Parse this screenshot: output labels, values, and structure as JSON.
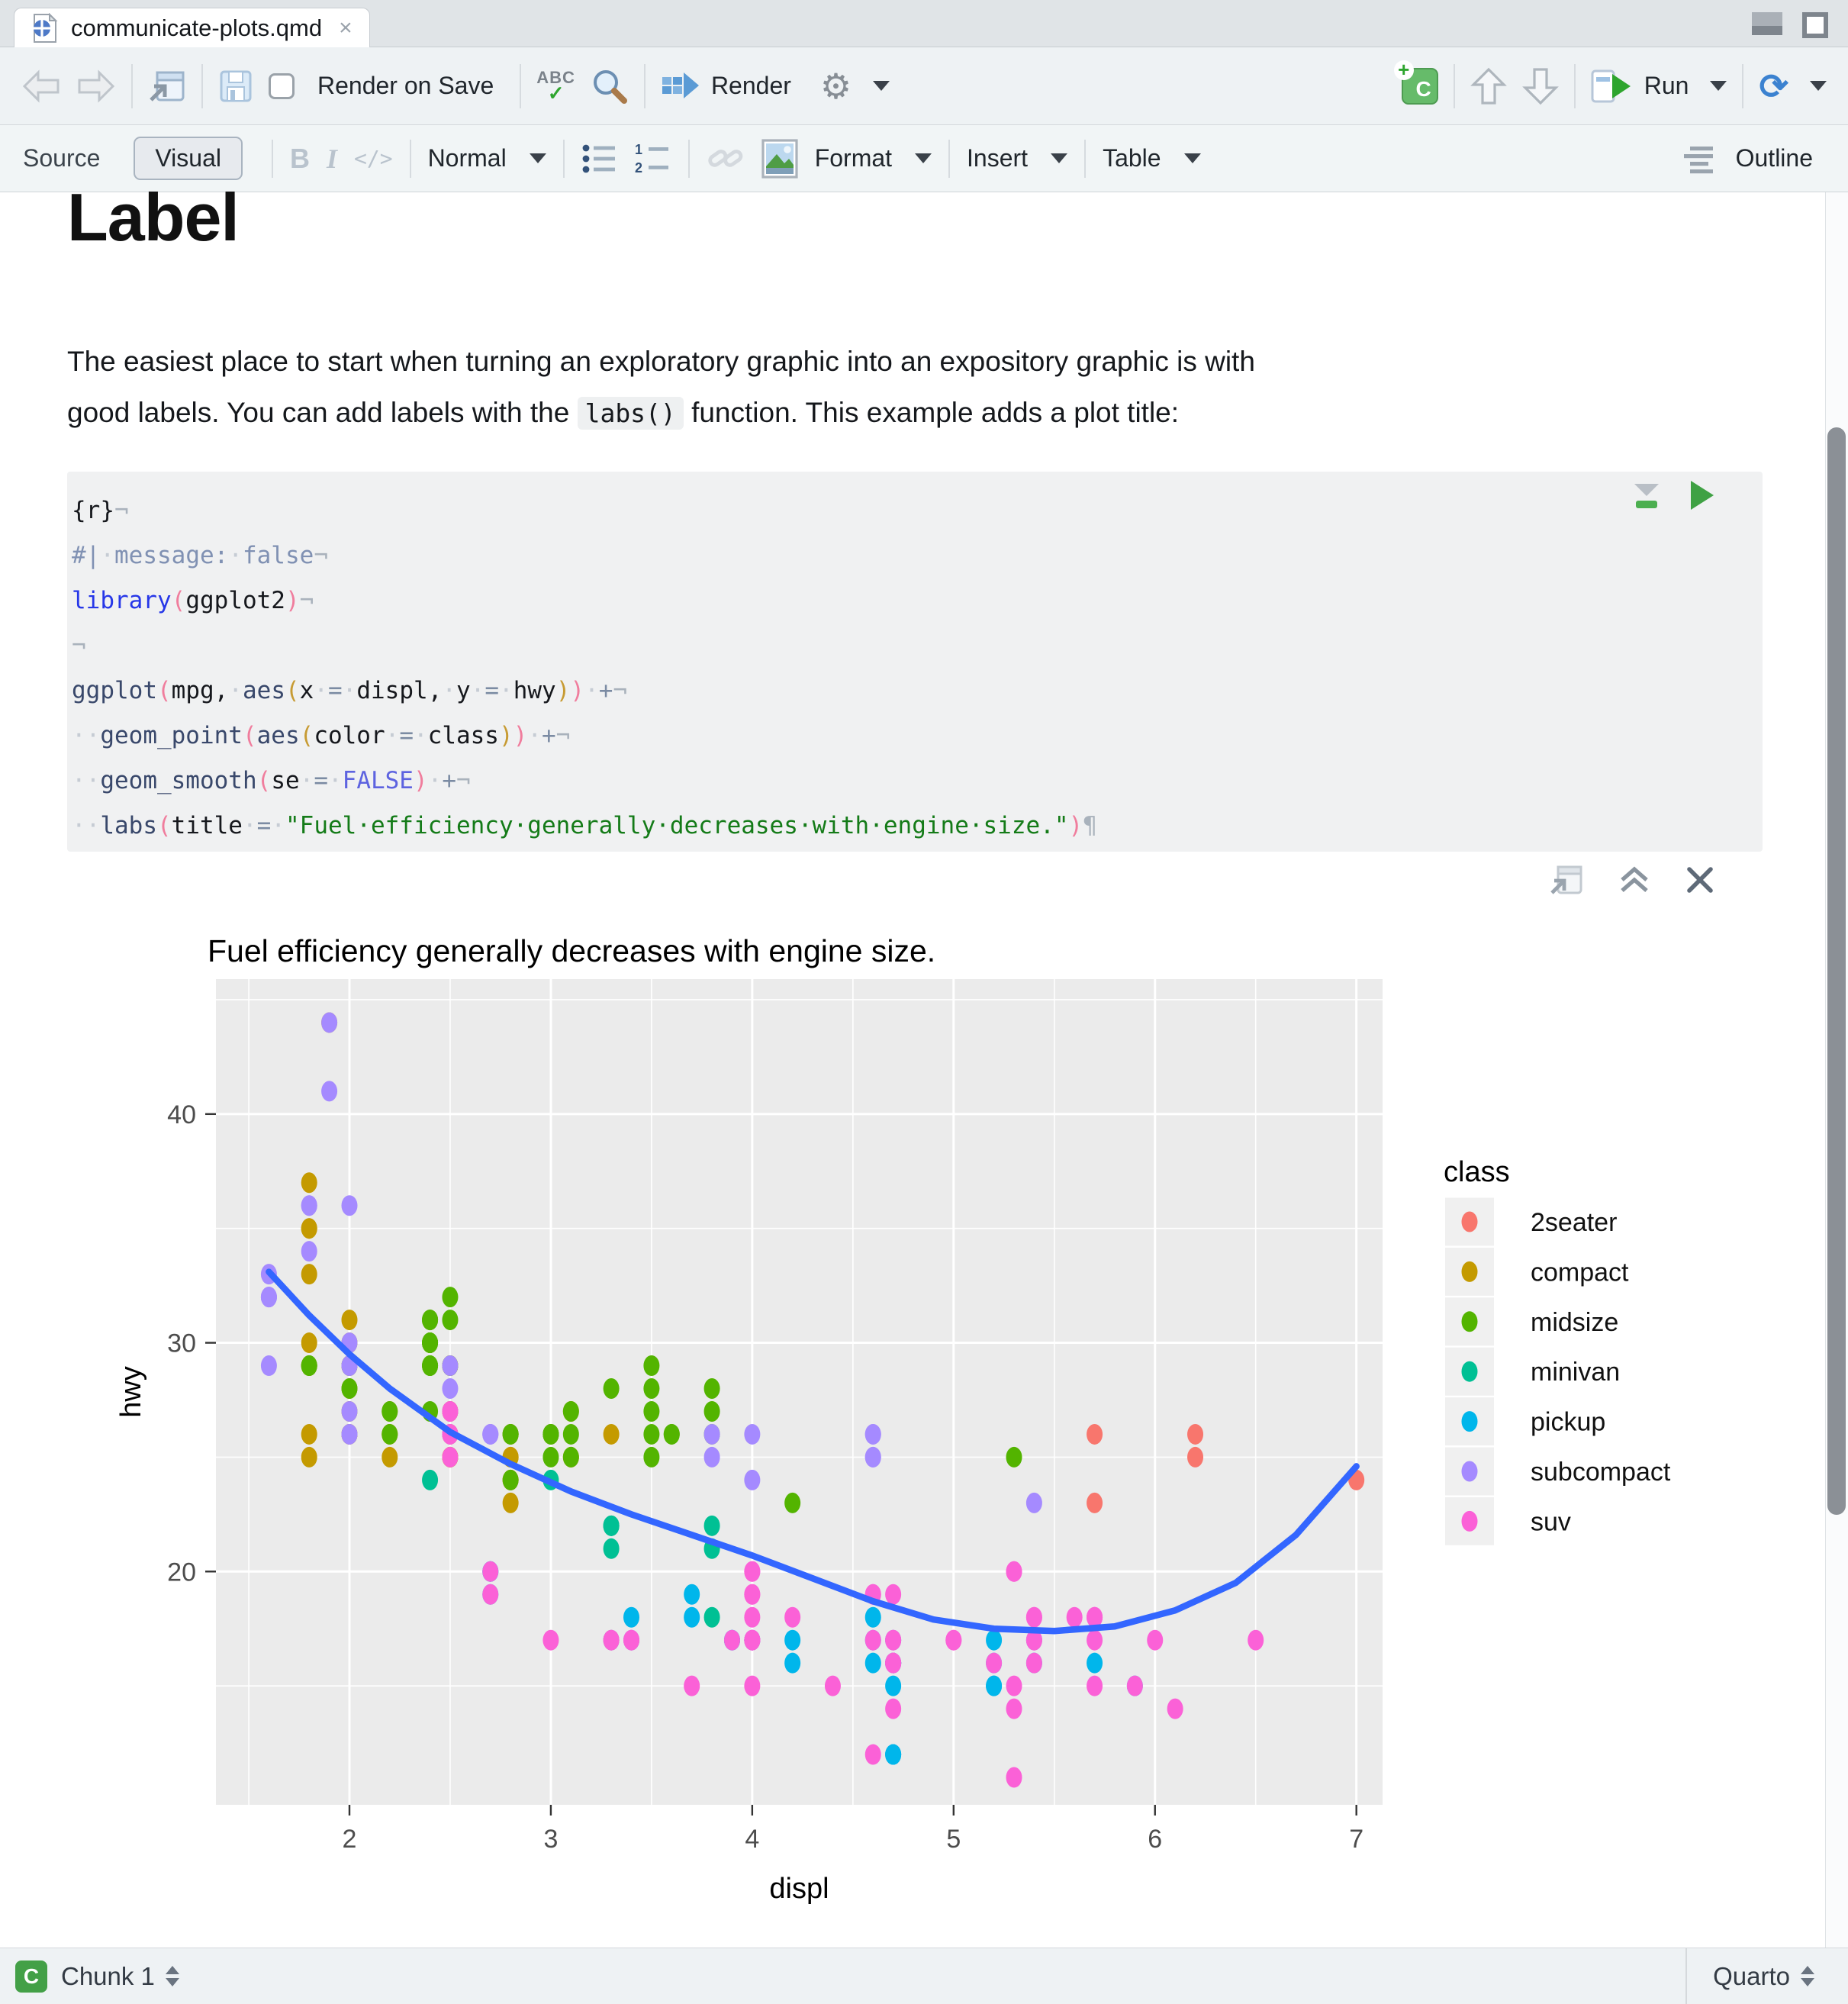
{
  "window": {
    "tab_title": "communicate-plots.qmd",
    "tab_close": "×"
  },
  "toolbar": {
    "render_on_save": "Render on Save",
    "render": "Render",
    "run": "Run"
  },
  "format_toolbar": {
    "source": "Source",
    "visual": "Visual",
    "bold": "B",
    "italic": "I",
    "code": "</>",
    "normal": "Normal",
    "format": "Format",
    "insert": "Insert",
    "table": "Table",
    "outline": "Outline"
  },
  "document": {
    "heading": "Label",
    "para_line1": "The easiest place to start when turning an exploratory graphic into an expository graphic is with",
    "para_line2a": "good labels. You can add labels with the ",
    "para_chip": "labs()",
    "para_line2b": " function. This example adds a plot title:"
  },
  "code_chunk": {
    "lines": [
      [
        [
          "{r}",
          "plain"
        ],
        [
          "¬",
          "eol"
        ]
      ],
      [
        [
          "#|",
          "comment"
        ],
        [
          "·",
          "dot"
        ],
        [
          "message:",
          "comment"
        ],
        [
          "·",
          "dot"
        ],
        [
          "false",
          "comment"
        ],
        [
          "¬",
          "eol"
        ]
      ],
      [
        [
          "library",
          "kw"
        ],
        [
          "(",
          "p1"
        ],
        [
          "ggplot2",
          "plain"
        ],
        [
          ")",
          "p1"
        ],
        [
          "¬",
          "eol"
        ]
      ],
      [
        [
          "¬",
          "eol"
        ]
      ],
      [
        [
          "ggplot",
          "fn"
        ],
        [
          "(",
          "p1"
        ],
        [
          "mpg",
          "plain"
        ],
        [
          ",",
          "plain"
        ],
        [
          "·",
          "dot"
        ],
        [
          "aes",
          "fn"
        ],
        [
          "(",
          "p2"
        ],
        [
          "x",
          "plain"
        ],
        [
          "·",
          "dot"
        ],
        [
          "=",
          "op"
        ],
        [
          "·",
          "dot"
        ],
        [
          "displ",
          "plain"
        ],
        [
          ",",
          "plain"
        ],
        [
          "·",
          "dot"
        ],
        [
          "y",
          "plain"
        ],
        [
          "·",
          "dot"
        ],
        [
          "=",
          "op"
        ],
        [
          "·",
          "dot"
        ],
        [
          "hwy",
          "plain"
        ],
        [
          ")",
          "p2"
        ],
        [
          ")",
          "p1"
        ],
        [
          "·",
          "dot"
        ],
        [
          "+",
          "op"
        ],
        [
          "¬",
          "eol"
        ]
      ],
      [
        [
          "··",
          "dot"
        ],
        [
          "geom_point",
          "fn"
        ],
        [
          "(",
          "p1"
        ],
        [
          "aes",
          "fn"
        ],
        [
          "(",
          "p2"
        ],
        [
          "color",
          "plain"
        ],
        [
          "·",
          "dot"
        ],
        [
          "=",
          "op"
        ],
        [
          "·",
          "dot"
        ],
        [
          "class",
          "plain"
        ],
        [
          ")",
          "p2"
        ],
        [
          ")",
          "p1"
        ],
        [
          "·",
          "dot"
        ],
        [
          "+",
          "op"
        ],
        [
          "¬",
          "eol"
        ]
      ],
      [
        [
          "··",
          "dot"
        ],
        [
          "geom_smooth",
          "fn"
        ],
        [
          "(",
          "p1"
        ],
        [
          "se",
          "plain"
        ],
        [
          "·",
          "dot"
        ],
        [
          "=",
          "op"
        ],
        [
          "·",
          "dot"
        ],
        [
          "FALSE",
          "false"
        ],
        [
          ")",
          "p1"
        ],
        [
          "·",
          "dot"
        ],
        [
          "+",
          "op"
        ],
        [
          "¬",
          "eol"
        ]
      ],
      [
        [
          "··",
          "dot"
        ],
        [
          "labs",
          "fn"
        ],
        [
          "(",
          "p1"
        ],
        [
          "title",
          "plain"
        ],
        [
          "·",
          "dot"
        ],
        [
          "=",
          "op"
        ],
        [
          "·",
          "dot"
        ],
        [
          "\"Fuel·efficiency·generally·decreases·with·engine·size.\"",
          "str"
        ],
        [
          ")",
          "p1"
        ],
        [
          "¶",
          "eol"
        ]
      ]
    ]
  },
  "chart_data": {
    "type": "scatter",
    "title": "Fuel efficiency generally decreases with engine size.",
    "xlabel": "displ",
    "ylabel": "hwy",
    "x_domain": [
      1.337,
      7.13
    ],
    "y_domain": [
      9.8,
      45.9
    ],
    "x_ticks": [
      2,
      3,
      4,
      5,
      6,
      7
    ],
    "y_ticks": [
      20,
      30,
      40
    ],
    "x_minor": [
      1.5,
      2.5,
      3.5,
      4.5,
      5.5,
      6.5
    ],
    "y_minor": [
      15,
      25,
      35,
      45
    ],
    "panel_bg": "#EBEBEB",
    "grid_color": "#FFFFFF",
    "tick_label_color": "#4d4d4d",
    "smooth_color": "#3366FF",
    "legend_title": "class",
    "classes": [
      {
        "label": "2seater",
        "color": "#F8766D"
      },
      {
        "label": "compact",
        "color": "#C49A00"
      },
      {
        "label": "midsize",
        "color": "#53B400"
      },
      {
        "label": "minivan",
        "color": "#00C094"
      },
      {
        "label": "pickup",
        "color": "#00B6EB"
      },
      {
        "label": "subcompact",
        "color": "#A58AFF"
      },
      {
        "label": "suv",
        "color": "#FB61D7"
      }
    ],
    "points": [
      [
        1.8,
        29,
        1
      ],
      [
        1.8,
        29,
        1
      ],
      [
        2.0,
        31,
        1
      ],
      [
        2.0,
        30,
        1
      ],
      [
        2.8,
        26,
        1
      ],
      [
        2.8,
        26,
        1
      ],
      [
        3.1,
        27,
        1
      ],
      [
        1.8,
        26,
        1
      ],
      [
        1.8,
        25,
        1
      ],
      [
        2.0,
        28,
        1
      ],
      [
        2.0,
        27,
        1
      ],
      [
        2.8,
        25,
        1
      ],
      [
        2.8,
        25,
        1
      ],
      [
        3.1,
        25,
        1
      ],
      [
        3.1,
        25,
        1
      ],
      [
        2.2,
        26,
        1
      ],
      [
        2.2,
        27,
        1
      ],
      [
        2.4,
        30,
        1
      ],
      [
        2.4,
        31,
        1
      ],
      [
        3.0,
        26,
        1
      ],
      [
        3.3,
        26,
        1
      ],
      [
        1.8,
        30,
        1
      ],
      [
        1.8,
        33,
        1
      ],
      [
        1.8,
        35,
        1
      ],
      [
        1.8,
        37,
        1
      ],
      [
        1.8,
        35,
        1
      ],
      [
        2.0,
        29,
        1
      ],
      [
        2.0,
        26,
        1
      ],
      [
        2.0,
        29,
        1
      ],
      [
        2.0,
        26,
        1
      ],
      [
        2.8,
        24,
        1
      ],
      [
        1.9,
        44,
        1
      ],
      [
        2.0,
        29,
        1
      ],
      [
        2.0,
        26,
        1
      ],
      [
        2.0,
        29,
        1
      ],
      [
        2.0,
        26,
        1
      ],
      [
        2.5,
        29,
        1
      ],
      [
        2.5,
        29,
        1
      ],
      [
        2.8,
        24,
        1
      ],
      [
        2.8,
        23,
        1
      ],
      [
        2.2,
        26,
        1
      ],
      [
        2.2,
        25,
        1
      ],
      [
        2.5,
        25,
        1
      ],
      [
        2.5,
        27,
        1
      ],
      [
        2.5,
        25,
        1
      ],
      [
        2.5,
        27,
        1
      ],
      [
        2.5,
        25,
        1
      ],
      [
        2.5,
        26,
        1
      ],
      [
        2.8,
        24,
        2
      ],
      [
        3.1,
        25,
        2
      ],
      [
        4.2,
        23,
        2
      ],
      [
        2.4,
        30,
        2
      ],
      [
        2.4,
        29,
        2
      ],
      [
        3.1,
        27,
        2
      ],
      [
        3.5,
        29,
        2
      ],
      [
        3.6,
        26,
        2
      ],
      [
        2.4,
        29,
        2
      ],
      [
        2.4,
        27,
        2
      ],
      [
        2.4,
        30,
        2
      ],
      [
        2.4,
        31,
        2
      ],
      [
        2.5,
        26,
        2
      ],
      [
        2.5,
        29,
        2
      ],
      [
        3.3,
        28,
        2
      ],
      [
        2.4,
        29,
        2
      ],
      [
        2.4,
        30,
        2
      ],
      [
        2.5,
        31,
        2
      ],
      [
        2.5,
        32,
        2
      ],
      [
        3.5,
        26,
        2
      ],
      [
        3.5,
        27,
        2
      ],
      [
        3.0,
        26,
        2
      ],
      [
        3.0,
        25,
        2
      ],
      [
        3.5,
        25,
        2
      ],
      [
        3.1,
        26,
        2
      ],
      [
        3.8,
        26,
        2
      ],
      [
        3.8,
        27,
        2
      ],
      [
        3.8,
        28,
        2
      ],
      [
        5.3,
        25,
        2
      ],
      [
        2.2,
        26,
        2
      ],
      [
        2.2,
        27,
        2
      ],
      [
        2.4,
        30,
        2
      ],
      [
        2.4,
        31,
        2
      ],
      [
        3.0,
        26,
        2
      ],
      [
        3.0,
        26,
        2
      ],
      [
        3.5,
        28,
        2
      ],
      [
        1.8,
        29,
        2
      ],
      [
        1.8,
        29,
        2
      ],
      [
        2.0,
        28,
        2
      ],
      [
        2.0,
        29,
        2
      ],
      [
        2.8,
        26,
        2
      ],
      [
        2.8,
        26,
        2
      ],
      [
        3.6,
        26,
        2
      ],
      [
        2.4,
        24,
        3
      ],
      [
        3.0,
        24,
        3
      ],
      [
        3.3,
        22,
        3
      ],
      [
        3.3,
        22,
        3
      ],
      [
        3.3,
        22,
        3
      ],
      [
        3.3,
        17,
        3
      ],
      [
        3.3,
        21,
        3
      ],
      [
        3.8,
        22,
        3
      ],
      [
        3.8,
        21,
        3
      ],
      [
        3.8,
        18,
        3
      ],
      [
        4.0,
        17,
        3
      ],
      [
        3.7,
        19,
        4
      ],
      [
        3.7,
        18,
        4
      ],
      [
        3.9,
        17,
        4
      ],
      [
        3.9,
        17,
        4
      ],
      [
        4.7,
        16,
        4
      ],
      [
        4.7,
        16,
        4
      ],
      [
        4.7,
        12,
        4
      ],
      [
        5.2,
        17,
        4
      ],
      [
        5.2,
        15,
        4
      ],
      [
        4.7,
        16,
        4
      ],
      [
        4.7,
        12,
        4
      ],
      [
        4.7,
        16,
        4
      ],
      [
        4.7,
        15,
        4
      ],
      [
        4.7,
        17,
        4
      ],
      [
        4.7,
        12,
        4
      ],
      [
        5.2,
        15,
        4
      ],
      [
        5.2,
        16,
        4
      ],
      [
        5.7,
        16,
        4
      ],
      [
        5.9,
        15,
        4
      ],
      [
        4.2,
        17,
        4
      ],
      [
        4.2,
        16,
        4
      ],
      [
        4.6,
        18,
        4
      ],
      [
        4.6,
        16,
        4
      ],
      [
        4.6,
        17,
        4
      ],
      [
        5.4,
        16,
        4
      ],
      [
        5.4,
        17,
        4
      ],
      [
        2.7,
        20,
        4
      ],
      [
        2.7,
        19,
        4
      ],
      [
        2.7,
        20,
        4
      ],
      [
        3.4,
        17,
        4
      ],
      [
        3.4,
        18,
        4
      ],
      [
        4.0,
        17,
        4
      ],
      [
        4.0,
        17,
        4
      ],
      [
        1.6,
        33,
        5
      ],
      [
        1.6,
        32,
        5
      ],
      [
        1.6,
        32,
        5
      ],
      [
        1.6,
        29,
        5
      ],
      [
        1.6,
        32,
        5
      ],
      [
        1.8,
        34,
        5
      ],
      [
        1.8,
        36,
        5
      ],
      [
        1.8,
        36,
        5
      ],
      [
        2.0,
        36,
        5
      ],
      [
        3.8,
        26,
        5
      ],
      [
        3.8,
        25,
        5
      ],
      [
        4.0,
        26,
        5
      ],
      [
        4.0,
        24,
        5
      ],
      [
        4.6,
        25,
        5
      ],
      [
        4.6,
        25,
        5
      ],
      [
        4.6,
        26,
        5
      ],
      [
        4.6,
        26,
        5
      ],
      [
        5.4,
        23,
        5
      ],
      [
        1.9,
        44,
        5
      ],
      [
        1.9,
        41,
        5
      ],
      [
        2.0,
        29,
        5
      ],
      [
        2.0,
        26,
        5
      ],
      [
        2.5,
        28,
        5
      ],
      [
        2.5,
        29,
        5
      ],
      [
        2.0,
        26,
        5
      ],
      [
        2.0,
        27,
        5
      ],
      [
        2.0,
        30,
        5
      ],
      [
        2.0,
        29,
        5
      ],
      [
        2.7,
        26,
        5
      ],
      [
        2.7,
        26,
        5
      ],
      [
        2.7,
        26,
        5
      ],
      [
        5.3,
        20,
        6
      ],
      [
        5.3,
        15,
        6
      ],
      [
        5.3,
        20,
        6
      ],
      [
        5.7,
        17,
        6
      ],
      [
        6.0,
        17,
        6
      ],
      [
        5.3,
        14,
        6
      ],
      [
        5.3,
        11,
        6
      ],
      [
        5.7,
        15,
        6
      ],
      [
        6.5,
        17,
        6
      ],
      [
        3.9,
        17,
        6
      ],
      [
        4.7,
        16,
        6
      ],
      [
        4.7,
        16,
        6
      ],
      [
        4.7,
        16,
        6
      ],
      [
        5.2,
        16,
        6
      ],
      [
        5.7,
        18,
        6
      ],
      [
        5.9,
        15,
        6
      ],
      [
        4.6,
        17,
        6
      ],
      [
        5.4,
        17,
        6
      ],
      [
        5.4,
        18,
        6
      ],
      [
        4.0,
        17,
        6
      ],
      [
        4.0,
        17,
        6
      ],
      [
        4.0,
        19,
        6
      ],
      [
        4.0,
        17,
        6
      ],
      [
        4.6,
        19,
        6
      ],
      [
        5.0,
        17,
        6
      ],
      [
        3.0,
        17,
        6
      ],
      [
        3.7,
        15,
        6
      ],
      [
        4.0,
        20,
        6
      ],
      [
        4.7,
        17,
        6
      ],
      [
        4.7,
        19,
        6
      ],
      [
        4.7,
        14,
        6
      ],
      [
        5.7,
        18,
        6
      ],
      [
        6.1,
        14,
        6
      ],
      [
        4.0,
        15,
        6
      ],
      [
        4.2,
        18,
        6
      ],
      [
        4.4,
        15,
        6
      ],
      [
        4.6,
        12,
        6
      ],
      [
        5.4,
        17,
        6
      ],
      [
        5.4,
        16,
        6
      ],
      [
        5.4,
        18,
        6
      ],
      [
        4.0,
        17,
        6
      ],
      [
        4.0,
        19,
        6
      ],
      [
        4.6,
        19,
        6
      ],
      [
        5.0,
        17,
        6
      ],
      [
        3.3,
        17,
        6
      ],
      [
        3.3,
        17,
        6
      ],
      [
        4.0,
        18,
        6
      ],
      [
        5.6,
        18,
        6
      ],
      [
        2.5,
        26,
        6
      ],
      [
        2.5,
        27,
        6
      ],
      [
        2.5,
        26,
        6
      ],
      [
        2.5,
        25,
        6
      ],
      [
        2.5,
        27,
        6
      ],
      [
        2.5,
        26,
        6
      ],
      [
        2.7,
        20,
        6
      ],
      [
        2.7,
        19,
        6
      ],
      [
        3.4,
        17,
        6
      ],
      [
        3.4,
        17,
        6
      ],
      [
        4.0,
        20,
        6
      ],
      [
        4.7,
        17,
        6
      ],
      [
        4.7,
        16,
        6
      ],
      [
        5.7,
        18,
        6
      ],
      [
        5.7,
        26,
        0
      ],
      [
        5.7,
        23,
        0
      ],
      [
        6.2,
        26,
        0
      ],
      [
        6.2,
        25,
        0
      ],
      [
        7.0,
        24,
        0
      ]
    ],
    "smooth": [
      [
        1.6,
        33.1
      ],
      [
        1.8,
        31.2
      ],
      [
        2.0,
        29.5
      ],
      [
        2.2,
        28.0
      ],
      [
        2.5,
        26.1
      ],
      [
        2.8,
        24.7
      ],
      [
        3.1,
        23.5
      ],
      [
        3.4,
        22.5
      ],
      [
        3.7,
        21.6
      ],
      [
        4.0,
        20.7
      ],
      [
        4.3,
        19.7
      ],
      [
        4.6,
        18.7
      ],
      [
        4.9,
        17.9
      ],
      [
        5.2,
        17.5
      ],
      [
        5.5,
        17.4
      ],
      [
        5.8,
        17.6
      ],
      [
        6.1,
        18.3
      ],
      [
        6.4,
        19.5
      ],
      [
        6.7,
        21.6
      ],
      [
        7.0,
        24.6
      ]
    ]
  },
  "status_bar": {
    "chunk_badge": "C",
    "chunk_label": "Chunk 1",
    "right_label": "Quarto"
  }
}
